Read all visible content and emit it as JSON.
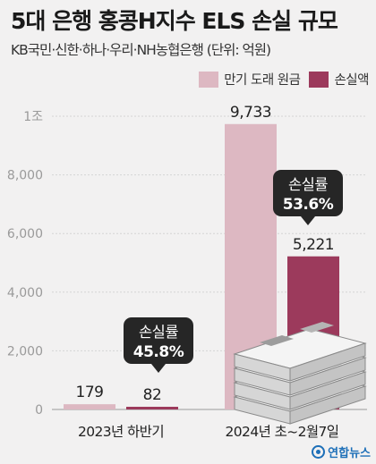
{
  "header": {
    "title": "5대 은행 홍콩H지수 ELS 손실 규모",
    "subtitle": "KB국민·신한·하나·우리·NH농협은행  (단위: 억원)"
  },
  "chart_data": {
    "type": "bar",
    "categories": [
      "2023년 하반기",
      "2024년 초~2월7일"
    ],
    "series": [
      {
        "name": "만기 도래 원금",
        "values": [
          179,
          9733
        ],
        "color": "#ddb8c2"
      },
      {
        "name": "손실액",
        "values": [
          82,
          5221
        ],
        "color": "#9c3a5c"
      }
    ],
    "value_labels": [
      [
        "179",
        "9,733"
      ],
      [
        "82",
        "5,221"
      ]
    ],
    "ylim": [
      0,
      10000
    ],
    "yticks": [
      {
        "value": 0,
        "label": "0"
      },
      {
        "value": 2000,
        "label": "2,000"
      },
      {
        "value": 4000,
        "label": "4,000"
      },
      {
        "value": 6000,
        "label": "6,000"
      },
      {
        "value": 8000,
        "label": "8,000"
      },
      {
        "value": 10000,
        "label": "1조"
      }
    ],
    "annotations": [
      {
        "category_index": 0,
        "title": "손실률",
        "value": "45.8%"
      },
      {
        "category_index": 1,
        "title": "손실률",
        "value": "53.6%"
      }
    ],
    "grid": true,
    "legend_position": "top-right"
  },
  "colors": {
    "background": "#f2f1f1",
    "callout": "#262626",
    "gridline": "#d4d4d4"
  },
  "footer": {
    "logo_label": "연합뉴스"
  }
}
